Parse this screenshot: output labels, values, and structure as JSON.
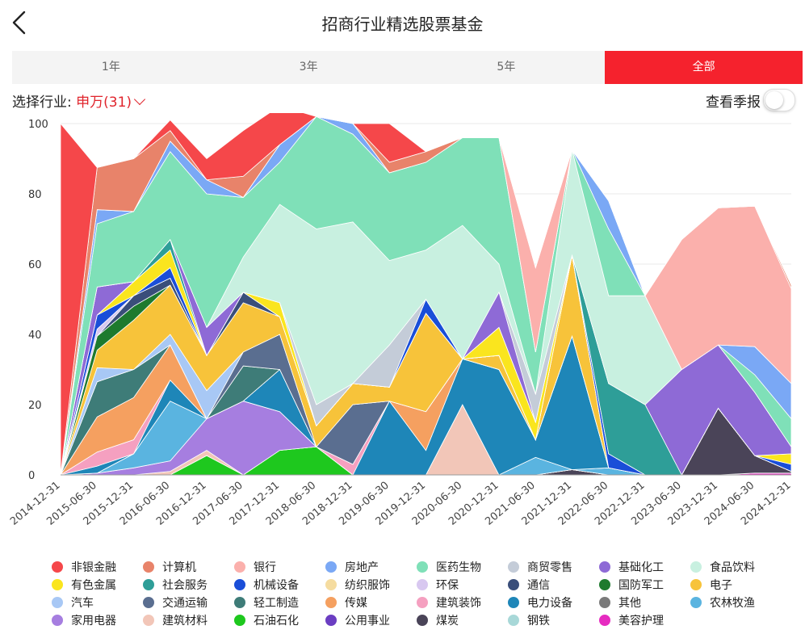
{
  "header": {
    "title": "招商行业精选股票基金"
  },
  "tabs": [
    {
      "label": "1年",
      "active": false
    },
    {
      "label": "3年",
      "active": false
    },
    {
      "label": "5年",
      "active": false
    },
    {
      "label": "全部",
      "active": true
    }
  ],
  "filter": {
    "label": "选择行业:",
    "value": "申万(31)"
  },
  "toggle": {
    "label": "查看季报",
    "on": false
  },
  "colors": {
    "accent": "#f5222d"
  },
  "chart_data": {
    "type": "area",
    "stacked": true,
    "ylim": [
      0,
      100
    ],
    "yticks": [
      0,
      20,
      40,
      60,
      80,
      100
    ],
    "x": [
      "2014-12-31",
      "2015-06-30",
      "2015-12-31",
      "2016-06-30",
      "2016-12-31",
      "2017-06-30",
      "2017-12-31",
      "2018-06-30",
      "2018-12-31",
      "2019-06-30",
      "2019-12-31",
      "2020-06-30",
      "2020-12-31",
      "2021-06-30",
      "2021-12-31",
      "2022-06-30",
      "2022-12-31",
      "2023-06-30",
      "2023-12-31",
      "2024-06-30",
      "2024-12-31"
    ],
    "xticks": [
      "2014-12-31",
      "2015-06-30",
      "2015-12-31",
      "2016-06-30",
      "2016-12-31",
      "2017-06-30",
      "2017-12-31",
      "2018-06-30",
      "2018-12-31",
      "2019-06-30",
      "2019-12-31",
      "2020-06-30",
      "2020-12-31",
      "2021-06-30",
      "2021-12-31",
      "2022-06-30",
      "2022-12-31",
      "2023-06-30",
      "2023-12-31",
      "2024-06-30",
      "2024-12-31"
    ],
    "grid": true,
    "legend_position": "bottom",
    "series": [
      {
        "name": "美容护理",
        "color": "#e62bc0",
        "values": [
          0,
          0,
          0,
          0,
          0,
          0,
          0,
          0,
          0,
          0,
          0,
          0,
          0,
          0,
          0,
          0,
          0,
          0,
          0,
          0.5,
          0.5
        ]
      },
      {
        "name": "钢铁",
        "color": "#a8d8d8",
        "values": [
          0,
          0,
          0,
          0,
          0,
          0,
          0,
          0,
          0,
          0,
          0,
          0,
          0,
          0,
          0,
          0,
          0,
          0,
          0,
          0,
          0
        ]
      },
      {
        "name": "煤炭",
        "color": "#4a4458",
        "values": [
          0,
          0,
          0,
          0,
          0,
          0,
          0,
          0,
          0,
          0,
          0,
          0,
          0,
          0,
          1.5,
          0,
          0,
          0,
          19,
          5,
          0.5
        ]
      },
      {
        "name": "公用事业",
        "color": "#6b3ec2",
        "values": [
          0,
          0,
          0,
          0,
          0,
          0,
          0,
          0,
          0,
          0,
          0,
          0,
          0,
          0,
          0,
          0,
          0,
          0,
          0,
          0,
          0
        ]
      },
      {
        "name": "石油石化",
        "color": "#1ec81e",
        "values": [
          0,
          0,
          0,
          0,
          5.5,
          0,
          7,
          8,
          0,
          0,
          0,
          0,
          0,
          0,
          0,
          0,
          0,
          0,
          0,
          0,
          0
        ]
      },
      {
        "name": "建筑材料",
        "color": "#f2c6b8",
        "values": [
          0,
          0,
          0,
          1,
          1.5,
          0,
          0,
          0,
          0,
          0,
          0,
          20,
          0,
          0,
          0,
          0,
          0,
          0,
          0,
          0,
          0
        ]
      },
      {
        "name": "家用电器",
        "color": "#a67ee0",
        "values": [
          0,
          0.5,
          2,
          3,
          9,
          21,
          11,
          0,
          0,
          0,
          0,
          0,
          0,
          0,
          0,
          0,
          0,
          0,
          0,
          0,
          0
        ]
      },
      {
        "name": "农林牧渔",
        "color": "#5ab4e0",
        "values": [
          0,
          0,
          4,
          17,
          0,
          0,
          0,
          0,
          0,
          0,
          0,
          0,
          0,
          5,
          0,
          2,
          0,
          0,
          0,
          0,
          0
        ]
      },
      {
        "name": "其他",
        "color": "#7a7a7a",
        "values": [
          0,
          0,
          0,
          0,
          0,
          0,
          0,
          0,
          0,
          0,
          0,
          0,
          0,
          0,
          0,
          0,
          0,
          0,
          0,
          0,
          0
        ]
      },
      {
        "name": "电力设备",
        "color": "#1e86b8",
        "values": [
          0,
          2,
          0,
          6,
          0,
          0,
          12,
          0,
          0,
          21,
          7,
          13,
          30,
          5,
          38,
          0,
          0,
          0,
          0,
          0,
          0
        ]
      },
      {
        "name": "建筑装饰",
        "color": "#f5a0c0",
        "values": [
          0,
          4,
          4,
          0,
          0,
          0,
          0,
          0,
          3,
          0,
          0,
          0,
          0,
          0,
          0,
          0,
          0,
          0,
          0,
          0,
          0
        ]
      },
      {
        "name": "传媒",
        "color": "#f5a060",
        "values": [
          0,
          10,
          12,
          10,
          0,
          0,
          0,
          0,
          0,
          0,
          11,
          0,
          0,
          0,
          0,
          0,
          0,
          0,
          0,
          0,
          0
        ]
      },
      {
        "name": "轻工制造",
        "color": "#3e7c78",
        "values": [
          0,
          10,
          8,
          0,
          0,
          10,
          0,
          0,
          0,
          0,
          0,
          0,
          0,
          0,
          0,
          0,
          0,
          0,
          0,
          0,
          0
        ]
      },
      {
        "name": "交通运输",
        "color": "#5a6e90",
        "values": [
          0,
          0,
          0,
          0,
          0,
          4,
          10,
          0,
          17,
          0,
          0,
          0,
          0,
          0,
          0,
          0,
          0,
          0,
          0,
          0,
          0
        ]
      },
      {
        "name": "汽车",
        "color": "#a8c8f5",
        "values": [
          0,
          4,
          0,
          3,
          8,
          0,
          0,
          0,
          0,
          0,
          0,
          0,
          0,
          0,
          0,
          0,
          0,
          0,
          0,
          0,
          0
        ]
      },
      {
        "name": "电子",
        "color": "#f7c33a",
        "values": [
          0,
          5,
          14,
          14,
          10,
          14,
          5,
          6,
          6,
          4,
          28,
          0,
          4,
          0,
          23,
          0,
          0,
          0,
          0,
          0,
          0
        ]
      },
      {
        "name": "国防军工",
        "color": "#1e7a2e",
        "values": [
          0,
          4,
          4,
          0,
          0,
          0,
          0,
          0,
          0,
          0,
          0,
          0,
          0,
          0,
          0,
          0,
          0,
          0,
          0,
          0,
          0
        ]
      },
      {
        "name": "通信",
        "color": "#3a4e7a",
        "values": [
          0,
          0,
          3,
          2,
          0,
          3,
          0,
          0,
          0,
          0,
          0,
          0,
          0,
          0,
          0,
          0,
          0,
          0,
          0,
          0,
          0
        ]
      },
      {
        "name": "环保",
        "color": "#d8c8f0",
        "values": [
          0,
          2,
          0,
          0,
          0,
          0,
          0,
          0,
          0,
          0,
          0,
          0,
          0,
          0,
          0,
          0,
          0,
          0,
          0,
          0,
          0
        ]
      },
      {
        "name": "纺织服饰",
        "color": "#f5dca0",
        "values": [
          0,
          0,
          0,
          0,
          0,
          0,
          0,
          0,
          0,
          0,
          0,
          0,
          0,
          0,
          0,
          0,
          0,
          0,
          0,
          0,
          0
        ]
      },
      {
        "name": "机械设备",
        "color": "#1a4ed8",
        "values": [
          0,
          4,
          0,
          3,
          0,
          0,
          0,
          0,
          0,
          0,
          4,
          0,
          0,
          0,
          0,
          4,
          0,
          0,
          0,
          0,
          2
        ]
      },
      {
        "name": "有色金属",
        "color": "#fae51e",
        "values": [
          0,
          0,
          4,
          5,
          0,
          0,
          4,
          0,
          0,
          0,
          0,
          0,
          8,
          5,
          0,
          0,
          0,
          0,
          0,
          0,
          3
        ]
      },
      {
        "name": "社会服务",
        "color": "#2e9e98",
        "values": [
          0,
          0,
          0,
          3,
          0,
          0,
          0,
          0,
          0,
          0,
          0,
          0,
          0,
          0,
          0,
          20,
          20,
          0,
          0,
          0,
          0
        ]
      },
      {
        "name": "基础化工",
        "color": "#8e6ad6",
        "values": [
          0,
          8,
          0,
          0,
          8,
          0,
          0,
          0,
          0,
          0,
          0,
          0,
          10,
          0,
          0,
          0,
          0,
          30,
          18,
          18,
          2
        ]
      },
      {
        "name": "商贸零售",
        "color": "#c4ccd8",
        "values": [
          0,
          0,
          0,
          0,
          0,
          0,
          0,
          6,
          0,
          12,
          0,
          0,
          0,
          8,
          0,
          0,
          0,
          0,
          0,
          0,
          0
        ]
      },
      {
        "name": "食品饮料",
        "color": "#c8f0e0",
        "values": [
          0,
          0,
          0,
          0,
          0,
          10,
          28,
          50,
          46,
          24,
          14,
          38,
          8,
          0,
          30,
          25,
          31,
          0,
          0,
          0,
          0
        ]
      },
      {
        "name": "医药生物",
        "color": "#7fe0b8",
        "values": [
          0,
          18,
          20,
          25,
          38,
          17,
          12,
          32,
          25,
          25,
          25,
          25,
          36,
          12,
          0,
          19,
          0,
          0,
          0,
          5,
          8
        ]
      },
      {
        "name": "房地产",
        "color": "#7aa8f5",
        "values": [
          0,
          4,
          0,
          3,
          4,
          0,
          5,
          0,
          3,
          0,
          0,
          0,
          0,
          0,
          0,
          8,
          0,
          0,
          0,
          8,
          10
        ]
      },
      {
        "name": "银行",
        "color": "#fbb0ac",
        "values": [
          0,
          0,
          0,
          0,
          0,
          0,
          0,
          0,
          0,
          0,
          0,
          0,
          0,
          24,
          0,
          0,
          0,
          37,
          39,
          40,
          27
        ]
      },
      {
        "name": "计算机",
        "color": "#e8836a",
        "values": [
          0,
          12,
          15,
          3,
          0,
          6,
          0,
          0,
          0,
          3,
          3,
          0,
          0,
          0,
          0,
          0,
          0,
          0,
          0,
          0,
          1
        ]
      },
      {
        "name": "非银金融",
        "color": "#f5474a",
        "values": [
          100,
          0,
          0,
          3,
          6,
          13,
          11,
          0,
          0,
          11,
          0,
          0,
          0,
          0,
          0,
          0,
          0,
          0,
          0,
          0,
          0
        ]
      }
    ],
    "legend": [
      {
        "name": "非银金融",
        "color": "#f5474a"
      },
      {
        "name": "计算机",
        "color": "#e8836a"
      },
      {
        "name": "银行",
        "color": "#fbb0ac"
      },
      {
        "name": "房地产",
        "color": "#7aa8f5"
      },
      {
        "name": "医药生物",
        "color": "#7fe0b8"
      },
      {
        "name": "商贸零售",
        "color": "#c4ccd8"
      },
      {
        "name": "基础化工",
        "color": "#8e6ad6"
      },
      {
        "name": "食品饮料",
        "color": "#c8f0e0"
      },
      {
        "name": "有色金属",
        "color": "#fae51e"
      },
      {
        "name": "社会服务",
        "color": "#2e9e98"
      },
      {
        "name": "机械设备",
        "color": "#1a4ed8"
      },
      {
        "name": "纺织服饰",
        "color": "#f5dca0"
      },
      {
        "name": "环保",
        "color": "#d8c8f0"
      },
      {
        "name": "通信",
        "color": "#3a4e7a"
      },
      {
        "name": "国防军工",
        "color": "#1e7a2e"
      },
      {
        "name": "电子",
        "color": "#f7c33a"
      },
      {
        "name": "汽车",
        "color": "#a8c8f5"
      },
      {
        "name": "交通运输",
        "color": "#5a6e90"
      },
      {
        "name": "轻工制造",
        "color": "#3e7c78"
      },
      {
        "name": "传媒",
        "color": "#f5a060"
      },
      {
        "name": "建筑装饰",
        "color": "#f5a0c0"
      },
      {
        "name": "电力设备",
        "color": "#1e86b8"
      },
      {
        "name": "其他",
        "color": "#7a7a7a"
      },
      {
        "name": "农林牧渔",
        "color": "#5ab4e0"
      },
      {
        "name": "家用电器",
        "color": "#a67ee0"
      },
      {
        "name": "建筑材料",
        "color": "#f2c6b8"
      },
      {
        "name": "石油石化",
        "color": "#1ec81e"
      },
      {
        "name": "公用事业",
        "color": "#6b3ec2"
      },
      {
        "name": "煤炭",
        "color": "#4a4458"
      },
      {
        "name": "钢铁",
        "color": "#a8d8d8"
      },
      {
        "name": "美容护理",
        "color": "#e62bc0"
      }
    ]
  }
}
